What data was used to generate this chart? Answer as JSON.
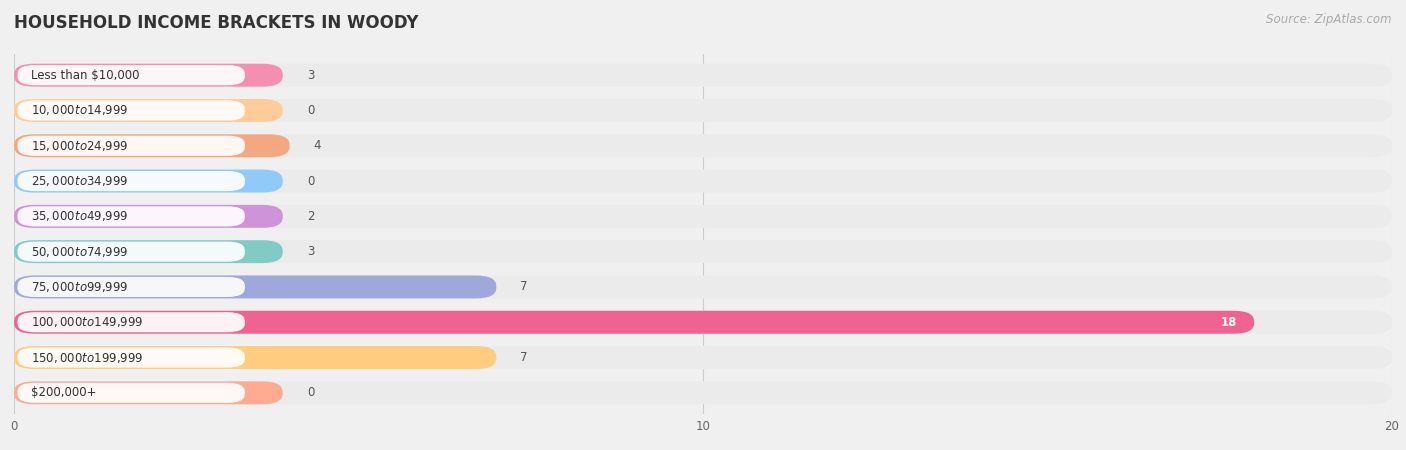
{
  "title": "HOUSEHOLD INCOME BRACKETS IN WOODY",
  "source": "Source: ZipAtlas.com",
  "categories": [
    "Less than $10,000",
    "$10,000 to $14,999",
    "$15,000 to $24,999",
    "$25,000 to $34,999",
    "$35,000 to $49,999",
    "$50,000 to $74,999",
    "$75,000 to $99,999",
    "$100,000 to $149,999",
    "$150,000 to $199,999",
    "$200,000+"
  ],
  "values": [
    3,
    0,
    4,
    0,
    2,
    3,
    7,
    18,
    7,
    0
  ],
  "bar_colors": [
    "#F48FB1",
    "#FFCC99",
    "#F4A882",
    "#90CAF9",
    "#CE93D8",
    "#80CBC4",
    "#9FA8DA",
    "#F06292",
    "#FFCC80",
    "#FFAB91"
  ],
  "row_bg_color": "#ebebeb",
  "bar_bg_color": "#ffffff",
  "label_bg_color": "#ffffff",
  "xlim": [
    0,
    20
  ],
  "xticks": [
    0,
    10,
    20
  ],
  "background_color": "#f0f0f0",
  "title_fontsize": 12,
  "label_fontsize": 8.5,
  "value_fontsize": 8.5,
  "source_fontsize": 8.5
}
